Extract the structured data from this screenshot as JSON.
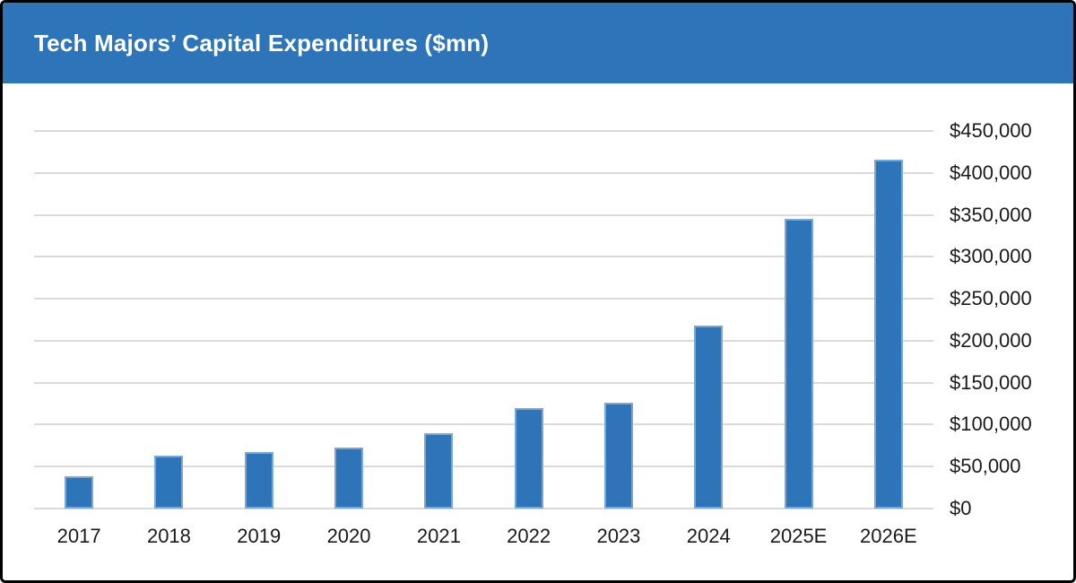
{
  "header": {
    "title": "Tech Majors’ Capital Expenditures ($mn)"
  },
  "colors": {
    "accent_blue": "#2E74B9",
    "bar_fill": "#2E74B9",
    "gridline": "#DADADA",
    "axis_text": "#1A1A1A",
    "title_text": "#FFFFFF",
    "frame_border": "#000000",
    "background": "#FFFFFF"
  },
  "chart_data": {
    "type": "bar",
    "title": "Tech Majors’ Capital Expenditures ($mn)",
    "categories": [
      "2017",
      "2018",
      "2019",
      "2020",
      "2021",
      "2022",
      "2023",
      "2024",
      "2025E",
      "2026E"
    ],
    "values": [
      38000,
      63000,
      67000,
      73000,
      90000,
      120000,
      126000,
      218000,
      345000,
      416000
    ],
    "xlabel": "",
    "ylabel": "",
    "ylim": [
      0,
      450000
    ],
    "y_tick_step": 50000,
    "y_tick_labels_top_down": [
      "$450,000",
      "$400,000",
      "$350,000",
      "$300,000",
      "$250,000",
      "$200,000",
      "$150,000",
      "$100,000",
      "$50,000",
      "$0"
    ],
    "grid": "horizontal",
    "legend": "none",
    "value_axis_side": "right"
  }
}
